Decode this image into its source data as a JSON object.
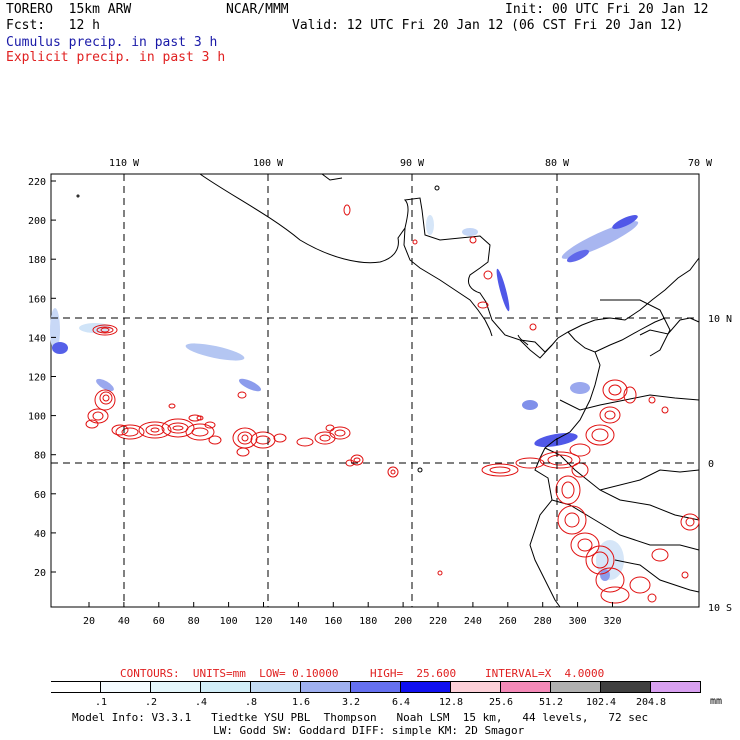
{
  "header": {
    "model": "TORERO  15km ARW",
    "center": "NCAR/MMM",
    "init": "Init: 00 UTC Fri 20 Jan 12",
    "fcst": "Fcst:   12 h",
    "valid": "Valid: 12 UTC Fri 20 Jan 12 (06 CST Fri 20 Jan 12)",
    "field_cumulus": "Cumulus precip. in past 3 h",
    "field_explicit": "Explicit precip. in past 3 h"
  },
  "map": {
    "lon_labels": [
      "110 W",
      "100 W",
      "90 W",
      "80 W",
      "70 W"
    ],
    "lat_labels": [
      "10 N",
      "0",
      "10 S"
    ],
    "y_ticks": [
      "220",
      "200",
      "180",
      "160",
      "140",
      "120",
      "100",
      "80",
      "60",
      "40",
      "20"
    ],
    "x_ticks": [
      "20",
      "40",
      "60",
      "80",
      "100",
      "120",
      "140",
      "160",
      "180",
      "200",
      "220",
      "240",
      "260",
      "280",
      "300",
      "320"
    ],
    "colors": {
      "coast": "#000000",
      "explicit": "#e01010",
      "grid": "#000000"
    }
  },
  "contours_info": {
    "units": "CONTOURS:  UNITS=mm  LOW= 0.10000",
    "high": "HIGH=  25.600",
    "interval": "INTERVAL=X  4.0000"
  },
  "colorbar": {
    "labels": [
      ".1",
      ".2",
      ".4",
      ".8",
      "1.6",
      "3.2",
      "6.4",
      "12.8",
      "25.6",
      "51.2",
      "102.4",
      "204.8"
    ],
    "unit": "mm",
    "colors": [
      "#ffffff",
      "#f4fbff",
      "#e4f6fb",
      "#d2eef8",
      "#c4dcf4",
      "#9fb0f0",
      "#6570f0",
      "#1010f0",
      "#fcd0d8",
      "#f48ab8",
      "#b0b0b0",
      "#404040",
      "#d8a0f0"
    ]
  },
  "model_info": {
    "line1": "Model Info: V3.3.1   Tiedtke YSU PBL  Thompson   Noah LSM  15 km,   44 levels,   72 sec",
    "line2": "LW: Godd SW: Goddard DIFF: simple KM: 2D Smagor"
  }
}
